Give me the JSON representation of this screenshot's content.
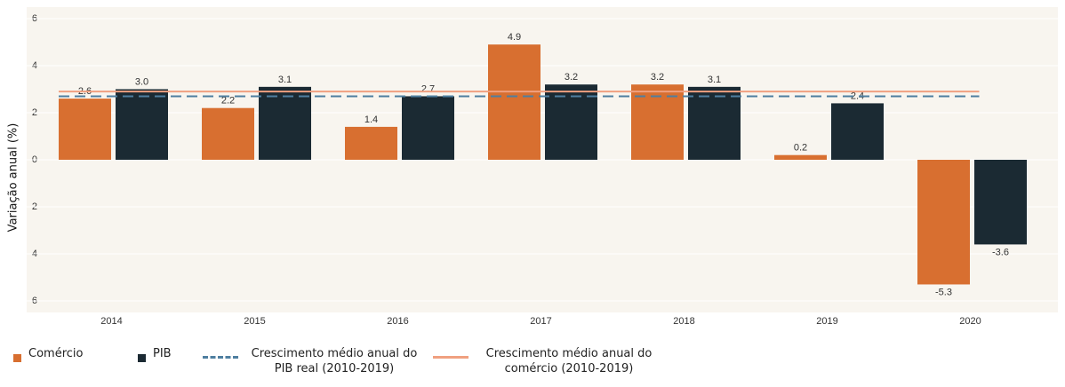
{
  "chart_data": {
    "type": "bar",
    "y_label": "Variação anual (%)",
    "categories": [
      "2014",
      "2015",
      "2016",
      "2017",
      "2018",
      "2019",
      "2020"
    ],
    "series": [
      {
        "name": "Comércio",
        "color": "#d86f30",
        "values": [
          2.6,
          2.2,
          1.4,
          4.9,
          3.2,
          0.2,
          -5.3
        ],
        "value_labels": [
          "2.6",
          "2.2",
          "1.4",
          "4.9",
          "3.2",
          "0.2",
          "-5.3"
        ]
      },
      {
        "name": "PIB",
        "color": "#1b2a33",
        "values": [
          3.0,
          3.1,
          2.7,
          3.2,
          3.1,
          2.4,
          -3.6
        ],
        "value_labels": [
          "3.0",
          "3.1",
          "2.7",
          "3.2",
          "3.1",
          "2.4",
          "-3.6"
        ]
      }
    ],
    "reference_lines": [
      {
        "name": "Crescimento médio anual do PIB real (2010-2019)",
        "value": 2.7,
        "color": "#4f7fa0",
        "style": "dashed"
      },
      {
        "name": "Crescimento médio anual do comércio (2010-2019)",
        "value": 2.9,
        "color": "#f0a080",
        "style": "solid"
      }
    ],
    "ylim": [
      -6.5,
      6.5
    ],
    "yticks": [
      -6,
      -4,
      -2,
      0,
      2,
      4,
      6
    ],
    "grid": true
  }
}
